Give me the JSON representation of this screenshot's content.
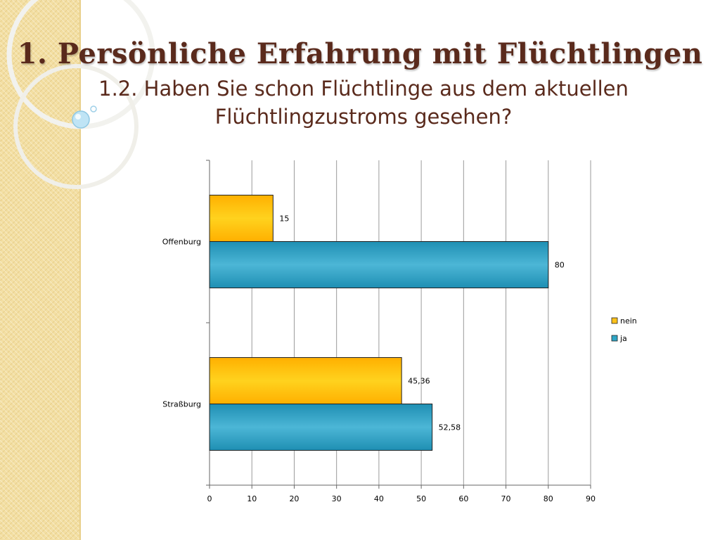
{
  "slide": {
    "title": "1. Persönliche Erfahrung mit Flüchtlingen",
    "subtitle": "1.2. Haben Sie schon Flüchtlinge aus dem aktuellen Flüchtlingzustroms gesehen?"
  },
  "colors": {
    "nein": "#ffc21a",
    "ja": "#2fa6c6",
    "title": "#5a2a1c"
  },
  "chart_data": {
    "type": "bar",
    "orientation": "horizontal",
    "categories": [
      "Offenburg",
      "Straßburg"
    ],
    "series": [
      {
        "name": "nein",
        "values": [
          15,
          45.36
        ],
        "labels": [
          "15",
          "45,36"
        ]
      },
      {
        "name": "ja",
        "values": [
          80,
          52.58
        ],
        "labels": [
          "80",
          "52,58"
        ]
      }
    ],
    "xlim": [
      0,
      90
    ],
    "xticks": [
      0,
      10,
      20,
      30,
      40,
      50,
      60,
      70,
      80,
      90
    ],
    "grid": true,
    "legend": "right"
  }
}
